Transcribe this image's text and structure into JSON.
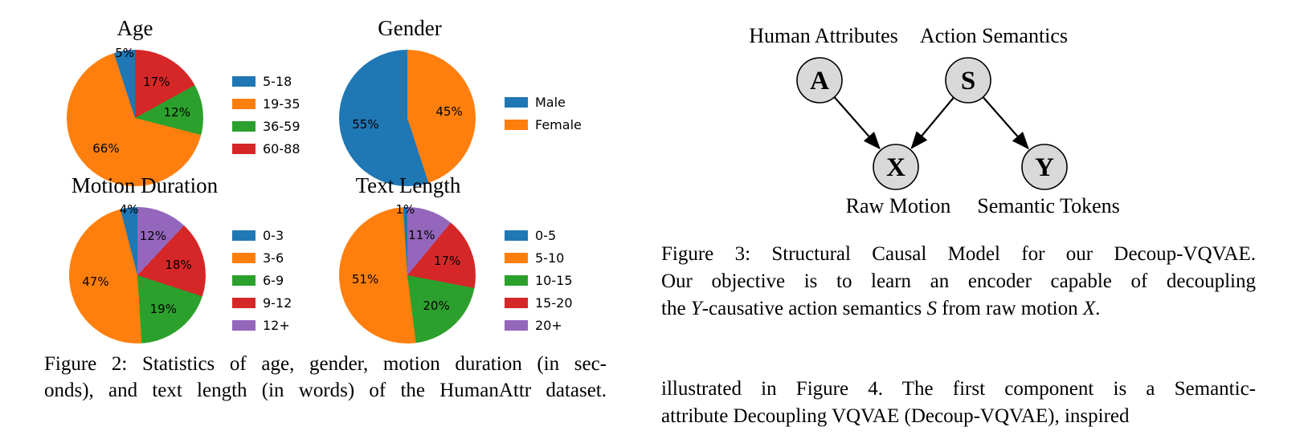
{
  "chart_data": [
    {
      "type": "pie",
      "title": "Age",
      "labels": [
        "5-18",
        "19-35",
        "36-59",
        "60-88"
      ],
      "values": [
        5,
        66,
        12,
        17
      ],
      "colors": [
        "#1f77b4",
        "#ff7f0e",
        "#2ca02c",
        "#d62728"
      ],
      "value_suffix": "%",
      "start_angle": 90,
      "direction": "counterclockwise",
      "legend_position": "right"
    },
    {
      "type": "pie",
      "title": "Gender",
      "labels": [
        "Male",
        "Female"
      ],
      "values": [
        55,
        45
      ],
      "colors": [
        "#1f77b4",
        "#ff7f0e"
      ],
      "value_suffix": "%",
      "start_angle": 90,
      "direction": "counterclockwise",
      "legend_position": "right"
    },
    {
      "type": "pie",
      "title": "Motion Duration",
      "labels": [
        "0-3",
        "3-6",
        "6-9",
        "9-12",
        "12+"
      ],
      "values": [
        4,
        47,
        19,
        18,
        12
      ],
      "colors": [
        "#1f77b4",
        "#ff7f0e",
        "#2ca02c",
        "#d62728",
        "#9467bd"
      ],
      "value_suffix": "%",
      "start_angle": 90,
      "direction": "counterclockwise",
      "legend_position": "right"
    },
    {
      "type": "pie",
      "title": "Text Length",
      "labels": [
        "0-5",
        "5-10",
        "10-15",
        "15-20",
        "20+"
      ],
      "values": [
        1,
        51,
        20,
        17,
        11
      ],
      "colors": [
        "#1f77b4",
        "#ff7f0e",
        "#2ca02c",
        "#d62728",
        "#9467bd"
      ],
      "value_suffix": "%",
      "start_angle": 90,
      "direction": "counterclockwise",
      "legend_position": "right"
    }
  ],
  "figure2": {
    "caption": {
      "line1": "Figure 2: Statistics of age, gender, motion duration (in sec-",
      "line2": "onds), and text length (in words) of the HumanAttr dataset."
    }
  },
  "figure3": {
    "top_labels": {
      "human_attributes": "Human Attributes",
      "action_semantics": "Action Semantics"
    },
    "nodes": {
      "a": "A",
      "s": "S",
      "x": "X",
      "y": "Y"
    },
    "bottom_labels": {
      "raw_motion": "Raw Motion",
      "semantic_tokens": "Semantic Tokens"
    },
    "caption": {
      "line1": "Figure 3: Structural Causal Model for our Decoup-VQVAE.",
      "line2": "Our objective is to learn an encoder capable of decoupling",
      "line3_parts": [
        "the ",
        "Y",
        "-causative action semantics ",
        "S",
        " from raw motion ",
        "X",
        "."
      ]
    }
  },
  "body_text": {
    "line1": "illustrated in Figure 4. The first component is a Semantic-",
    "line2": "attribute Decoupling VQVAE (Decoup-VQVAE), inspired"
  },
  "diagram_colors": {
    "node_fill": "#d9d9d9",
    "node_stroke": "#000000",
    "arrow": "#000000"
  }
}
